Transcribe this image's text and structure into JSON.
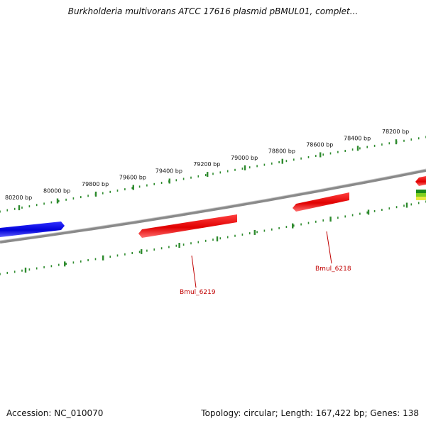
{
  "title": "Burkholderia multivorans ATCC 17616 plasmid pBMUL01, complet...",
  "footer": {
    "accession": "Accession: NC_010070",
    "summary": "Topology: circular; Length: 167,422 bp; Genes: 138"
  },
  "colors": {
    "backbone": "#808080",
    "ticks": "#2e8b2e",
    "gene_forward": "#1010e0",
    "gene_reverse": "#e01010",
    "gene_label": "#c00000"
  },
  "scale_labels": [
    "80200 bp",
    "80000 bp",
    "79800 bp",
    "79600 bp",
    "79400 bp",
    "79200 bp",
    "79000 bp",
    "78800 bp",
    "78600 bp",
    "78400 bp",
    "78200 bp"
  ],
  "genes": [
    {
      "id": "blue-gene",
      "label": "",
      "color": "#1010e0"
    },
    {
      "id": "Bmul_6219",
      "label": "Bmul_6219",
      "color": "#e01010"
    },
    {
      "id": "Bmul_6218",
      "label": "Bmul_6218",
      "color": "#e01010"
    },
    {
      "id": "edge-red-gene",
      "label": "",
      "color": "#e01010"
    }
  ]
}
